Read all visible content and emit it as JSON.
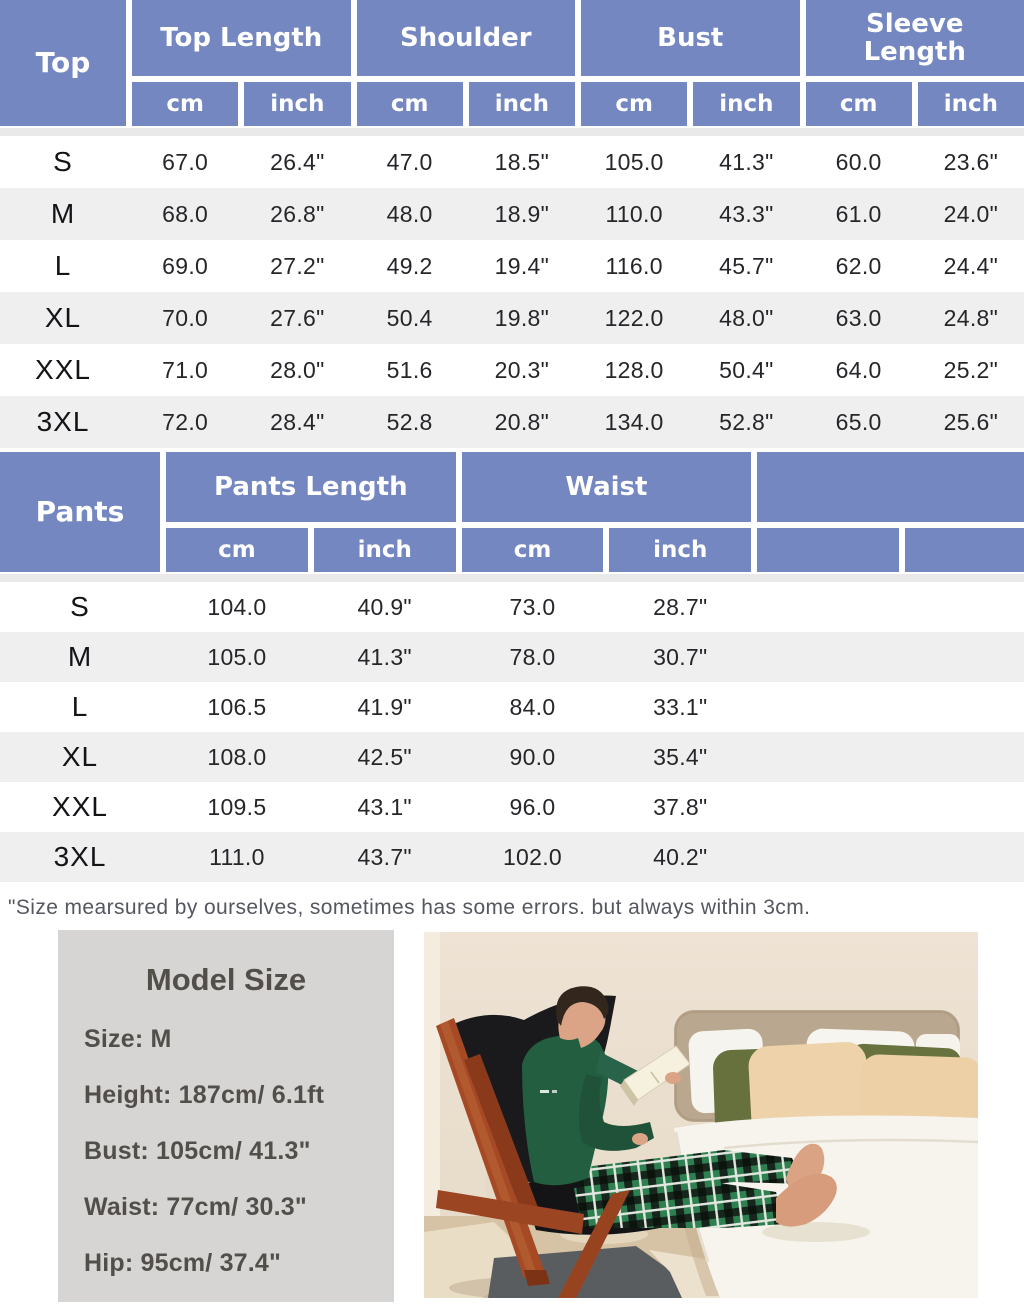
{
  "colors": {
    "header_blue": "#7487c0",
    "row_alt": "#efefef",
    "model_box_bg": "#d7d5d3",
    "model_text": "#524f4b"
  },
  "top_table": {
    "title": "Top",
    "groups": [
      {
        "label": "Top Length"
      },
      {
        "label": "Shoulder"
      },
      {
        "label": "Bust"
      },
      {
        "label": "Sleeve\nLength"
      }
    ],
    "unit_headers": [
      "cm",
      "inch",
      "cm",
      "inch",
      "cm",
      "inch",
      "cm",
      "inch"
    ],
    "rows": [
      {
        "size": "S",
        "values": [
          "67.0",
          "26.4\"",
          "47.0",
          "18.5\"",
          "105.0",
          "41.3\"",
          "60.0",
          "23.6\""
        ]
      },
      {
        "size": "M",
        "values": [
          "68.0",
          "26.8\"",
          "48.0",
          "18.9\"",
          "110.0",
          "43.3\"",
          "61.0",
          "24.0\""
        ]
      },
      {
        "size": "L",
        "values": [
          "69.0",
          "27.2\"",
          "49.2",
          "19.4\"",
          "116.0",
          "45.7\"",
          "62.0",
          "24.4\""
        ]
      },
      {
        "size": "XL",
        "values": [
          "70.0",
          "27.6\"",
          "50.4",
          "19.8\"",
          "122.0",
          "48.0\"",
          "63.0",
          "24.8\""
        ]
      },
      {
        "size": "XXL",
        "values": [
          "71.0",
          "28.0\"",
          "51.6",
          "20.3\"",
          "128.0",
          "50.4\"",
          "64.0",
          "25.2\""
        ]
      },
      {
        "size": "3XL",
        "values": [
          "72.0",
          "28.4\"",
          "52.8",
          "20.8\"",
          "134.0",
          "52.8\"",
          "65.0",
          "25.6\""
        ]
      }
    ]
  },
  "pants_table": {
    "title": "Pants",
    "groups": [
      {
        "label": "Pants Length"
      },
      {
        "label": "Waist"
      },
      {
        "label": ""
      }
    ],
    "unit_headers": [
      "cm",
      "inch",
      "cm",
      "inch",
      "",
      ""
    ],
    "rows": [
      {
        "size": "S",
        "values": [
          "104.0",
          "40.9\"",
          "73.0",
          "28.7\""
        ]
      },
      {
        "size": "M",
        "values": [
          "105.0",
          "41.3\"",
          "78.0",
          "30.7\""
        ]
      },
      {
        "size": "L",
        "values": [
          "106.5",
          "41.9\"",
          "84.0",
          "33.1\""
        ]
      },
      {
        "size": "XL",
        "values": [
          "108.0",
          "42.5\"",
          "90.0",
          "35.4\""
        ]
      },
      {
        "size": "XXL",
        "values": [
          "109.5",
          "43.1\"",
          "96.0",
          "37.8\""
        ]
      },
      {
        "size": "3XL",
        "values": [
          "111.0",
          "43.7\"",
          "102.0",
          "40.2\""
        ]
      }
    ]
  },
  "footnote": "\"Size mearsured by ourselves, sometimes has some errors. but always within 3cm.",
  "model_info": {
    "title": "Model Size",
    "lines": [
      "Size: M",
      "Height: 187cm/ 6.1ft",
      "Bust: 105cm/ 41.3\"",
      "Waist: 77cm/ 30.3\"",
      "Hip: 95cm/ 37.4\""
    ]
  },
  "photo": {
    "description": "Man in green pajama top and green plaid pajama pants reading a book in a wooden sling chair with his feet resting on a bed"
  }
}
